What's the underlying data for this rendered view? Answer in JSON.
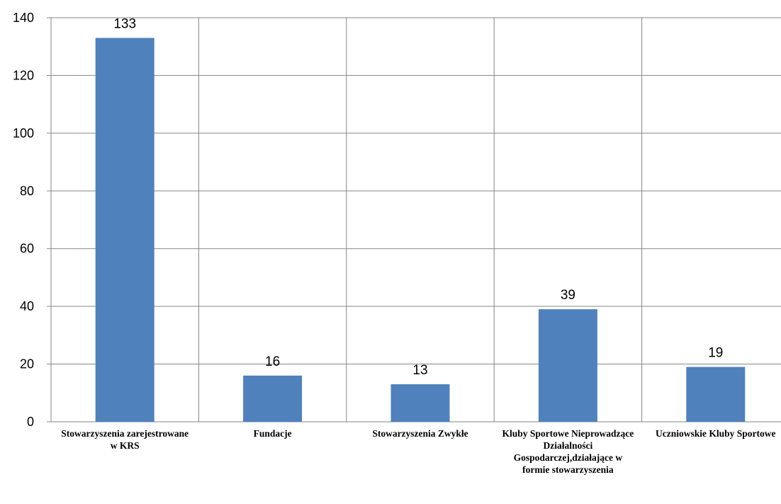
{
  "chart_data": {
    "type": "bar",
    "categories": [
      "Stowarzyszenia zarejestrowane w KRS",
      "Fundacje",
      "Stowarzyszenia Zwykłe",
      "Kluby Sportowe Nieprowadzące Działalności Gospodarczej,działające w formie stowarzyszenia",
      "Uczniowskie Kluby Sportowe"
    ],
    "values": [
      133,
      16,
      13,
      39,
      19
    ],
    "data_labels": [
      "133",
      "16",
      "13",
      "39",
      "19"
    ],
    "ylim": [
      0,
      140
    ],
    "yticks": [
      0,
      20,
      40,
      60,
      80,
      100,
      120,
      140
    ],
    "grid": true,
    "legend": "none",
    "bar_color": "#4f81bd",
    "grid_color": "#868686"
  }
}
